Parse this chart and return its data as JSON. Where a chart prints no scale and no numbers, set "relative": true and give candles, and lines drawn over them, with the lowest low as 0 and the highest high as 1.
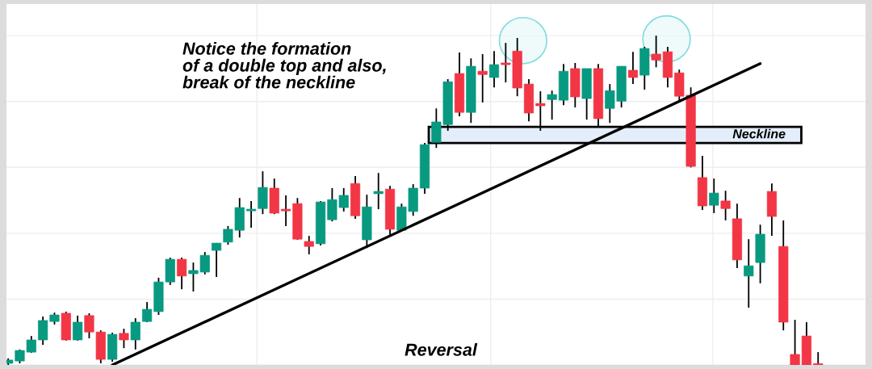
{
  "chart_data": {
    "type": "candlestick",
    "relative": true,
    "grid": true,
    "categories": [
      null,
      null,
      null,
      null,
      null,
      null,
      null,
      null,
      null,
      null,
      null,
      null,
      null,
      null,
      null,
      null,
      null,
      null,
      null,
      null,
      null,
      null,
      null,
      null,
      null,
      null,
      null,
      null,
      null,
      null,
      null,
      null,
      null,
      null,
      null,
      null,
      null,
      null,
      null,
      null,
      null,
      null,
      null,
      null,
      null,
      null,
      null,
      null,
      null,
      null,
      null,
      null,
      null,
      null,
      null,
      null,
      null,
      null,
      null,
      null,
      null,
      null,
      null,
      null,
      null,
      null,
      null,
      null,
      null,
      null,
      null
    ],
    "ohlc": [
      [
        0.005,
        0.02,
        0,
        0.015
      ],
      [
        0.012,
        0.047,
        0.005,
        0.044
      ],
      [
        0.039,
        0.088,
        0.037,
        0.076
      ],
      [
        0.076,
        0.147,
        0.061,
        0.135
      ],
      [
        0.132,
        0.159,
        0.123,
        0.152
      ],
      [
        0.157,
        0.162,
        0.074,
        0.076
      ],
      [
        0.076,
        0.15,
        0.074,
        0.13
      ],
      [
        0.15,
        0.157,
        0.081,
        0.1
      ],
      [
        0.1,
        0.105,
        0.005,
        0.017
      ],
      [
        0.017,
        0.098,
        0.01,
        0.093
      ],
      [
        0.096,
        0.11,
        0.051,
        0.076
      ],
      [
        0.076,
        0.142,
        0.047,
        0.13
      ],
      [
        0.132,
        0.191,
        0.13,
        0.169
      ],
      [
        0.162,
        0.265,
        0.152,
        0.252
      ],
      [
        0.252,
        0.326,
        0.243,
        0.321
      ],
      [
        0.321,
        0.326,
        0.23,
        0.27
      ],
      [
        0.277,
        0.311,
        0.223,
        0.287
      ],
      [
        0.282,
        0.343,
        0.275,
        0.333
      ],
      [
        0.348,
        0.37,
        0.267,
        0.37
      ],
      [
        0.373,
        0.422,
        0.365,
        0.412
      ],
      [
        0.409,
        0.507,
        0.387,
        0.478
      ],
      [
        0.468,
        0.498,
        0.417,
        0.473
      ],
      [
        0.475,
        0.588,
        0.458,
        0.539
      ],
      [
        0.537,
        0.566,
        0.458,
        0.461
      ],
      [
        0.473,
        0.515,
        0.422,
        0.468
      ],
      [
        0.49,
        0.507,
        0.38,
        0.382
      ],
      [
        0.375,
        0.392,
        0.336,
        0.36
      ],
      [
        0.368,
        0.498,
        0.363,
        0.495
      ],
      [
        0.441,
        0.537,
        0.436,
        0.502
      ],
      [
        0.478,
        0.537,
        0.466,
        0.515
      ],
      [
        0.551,
        0.574,
        0.444,
        0.453
      ],
      [
        0.38,
        0.517,
        0.355,
        0.48
      ],
      [
        0.52,
        0.583,
        0.473,
        0.527
      ],
      [
        0.534,
        0.544,
        0.39,
        0.412
      ],
      [
        0.409,
        0.49,
        0.407,
        0.48
      ],
      [
        0.466,
        0.549,
        0.453,
        0.537
      ],
      [
        0.537,
        0.674,
        0.52,
        0.669
      ],
      [
        0.676,
        0.779,
        0.659,
        0.738
      ],
      [
        0.73,
        0.868,
        0.711,
        0.86
      ],
      [
        0.885,
        0.949,
        0.755,
        0.767
      ],
      [
        0.767,
        0.931,
        0.735,
        0.907
      ],
      [
        0.892,
        0.944,
        0.797,
        0.882
      ],
      [
        0.873,
        0.953,
        0.843,
        0.912
      ],
      [
        0.917,
        0.978,
        0.858,
        0.912
      ],
      [
        0.953,
        0.993,
        0.816,
        0.841
      ],
      [
        0.853,
        0.868,
        0.74,
        0.765
      ],
      [
        0.794,
        0.831,
        0.711,
        0.787
      ],
      [
        0.806,
        0.833,
        0.745,
        0.821
      ],
      [
        0.804,
        0.914,
        0.789,
        0.892
      ],
      [
        0.9,
        0.917,
        0.782,
        0.814
      ],
      [
        0.809,
        0.9,
        0.745,
        0.9
      ],
      [
        0.9,
        0.914,
        0.723,
        0.748
      ],
      [
        0.779,
        0.853,
        0.735,
        0.833
      ],
      [
        0.801,
        0.907,
        0.782,
        0.907
      ],
      [
        0.895,
        0.951,
        0.853,
        0.873
      ],
      [
        0.88,
        0.966,
        0.836,
        0.961
      ],
      [
        0.944,
        1,
        0.904,
        0.926
      ],
      [
        0.951,
        0.966,
        0.843,
        0.873
      ],
      [
        0.887,
        0.897,
        0.797,
        0.816
      ],
      [
        0.819,
        0.843,
        0.6,
        0.603
      ],
      [
        0.569,
        0.635,
        0.471,
        0.483
      ],
      [
        0.485,
        0.566,
        0.461,
        0.522
      ],
      [
        0.498,
        0.529,
        0.439,
        0.475
      ],
      [
        0.444,
        0.49,
        0.294,
        0.319
      ],
      [
        0.27,
        0.382,
        0.174,
        0.301
      ],
      [
        0.311,
        0.426,
        0.248,
        0.397
      ],
      [
        0.527,
        0.551,
        0.392,
        0.451
      ],
      [
        0.36,
        0.439,
        0.105,
        0.13
      ],
      [
        0.032,
        0.137,
        0,
        0
      ],
      [
        0.088,
        0.13,
        0,
        0
      ],
      [
        0,
        0.039,
        0,
        0
      ]
    ],
    "colors": [
      "#089981",
      "#089981",
      "#089981",
      "#089981",
      "#089981",
      "#f23645",
      "#089981",
      "#f23645",
      "#f23645",
      "#089981",
      "#f23645",
      "#089981",
      "#089981",
      "#089981",
      "#089981",
      "#f23645",
      "#089981",
      "#089981",
      "#089981",
      "#089981",
      "#089981",
      "#089981",
      "#089981",
      "#f23645",
      "#f23645",
      "#f23645",
      "#f23645",
      "#089981",
      "#089981",
      "#089981",
      "#f23645",
      "#089981",
      "#089981",
      "#f23645",
      "#089981",
      "#089981",
      "#089981",
      "#089981",
      "#089981",
      "#f23645",
      "#089981",
      "#f23645",
      "#089981",
      "#f23645",
      "#f23645",
      "#f23645",
      "#f23645",
      "#089981",
      "#089981",
      "#f23645",
      "#089981",
      "#f23645",
      "#089981",
      "#089981",
      "#f23645",
      "#089981",
      "#f23645",
      "#f23645",
      "#f23645",
      "#f23645",
      "#f23645",
      "#089981",
      "#f23645",
      "#f23645",
      "#089981",
      "#089981",
      "#f23645",
      "#f23645",
      "#f23645",
      "#f23645",
      "#f23645"
    ],
    "series": [
      {
        "type": "line",
        "color": "#000000",
        "values": [
          null,
          null,
          null,
          null,
          null,
          null,
          null,
          null,
          null,
          0,
          null,
          null,
          null,
          null,
          null,
          null,
          null,
          null,
          null,
          null,
          null,
          null,
          null,
          null,
          null,
          null,
          null,
          null,
          null,
          null,
          null,
          null,
          null,
          null,
          null,
          null,
          null,
          null,
          null,
          null,
          null,
          null,
          null,
          null,
          null,
          null,
          null,
          null,
          null,
          null,
          null,
          null,
          null,
          null,
          null,
          null,
          null,
          null,
          null,
          null,
          null,
          null,
          null,
          null,
          null,
          0.915,
          null,
          null,
          null,
          null,
          null
        ]
      }
    ],
    "bands": [
      {
        "axis": "y",
        "from": 0.674,
        "to": 0.723,
        "label": "Neckline",
        "color": "#e3eefa"
      }
    ],
    "annotations": [
      "Notice the formation\nof a double top and also,\nbreak of the neckline",
      "Reversal"
    ]
  }
}
